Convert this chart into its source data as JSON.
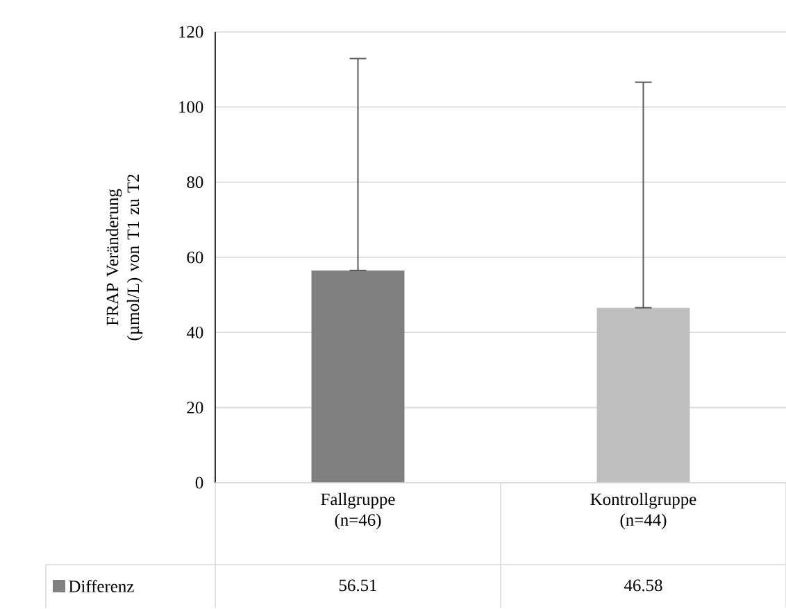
{
  "chart_data": {
    "type": "bar",
    "ylabel": "FRAP Veränderung  (µmol/L) von T1 zu T2",
    "categories": [
      "Fallgruppe (n=46)",
      "Kontrollgruppe (n=44)"
    ],
    "series": [
      {
        "name": "Differenz",
        "colors": [
          "#808080",
          "#bfbfbf"
        ],
        "values": [
          56.51,
          46.58
        ],
        "errors": [
          [
            56.51,
            112.9
          ],
          [
            46.58,
            106.6
          ]
        ],
        "value_labels": [
          "56.51",
          "46.58"
        ]
      }
    ],
    "ylim": [
      0,
      120
    ],
    "yticks": [
      0,
      20,
      40,
      60,
      80,
      100,
      120
    ],
    "grid": "y",
    "legend": "bottom left",
    "data_labels": true
  }
}
